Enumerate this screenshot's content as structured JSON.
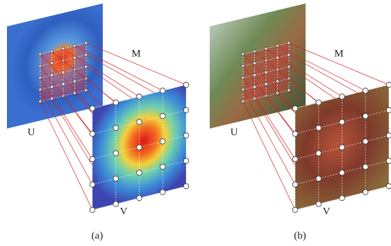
{
  "panels": [
    {
      "m_label": "M",
      "u_label": "U",
      "v_label": "V",
      "caption": "(a)"
    },
    {
      "m_label": "M",
      "u_label": "U",
      "v_label": "V",
      "caption": "(b)"
    }
  ]
}
